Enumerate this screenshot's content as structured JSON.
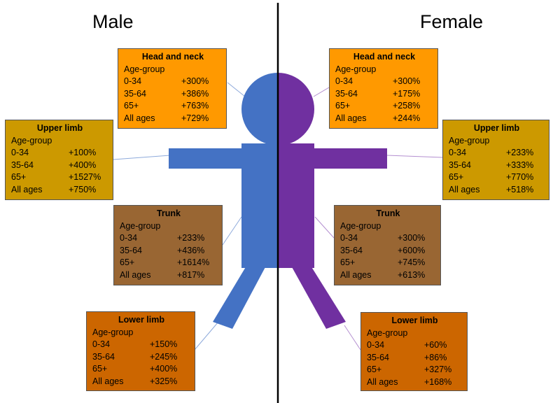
{
  "titles": {
    "male": "Male",
    "female": "Female"
  },
  "colors": {
    "male_figure": "#4472c4",
    "female_figure": "#7030a0",
    "head_neck_box": "#ff9900",
    "upper_limb_box": "#cc9900",
    "trunk_box": "#996633",
    "lower_limb_box": "#cc6600",
    "divider": "#000000",
    "connector": "#8eaadb"
  },
  "male": {
    "head_neck": {
      "title": "Head and neck",
      "subtitle": "Age-group",
      "rows": [
        {
          "age": "0-34",
          "value": "+300%"
        },
        {
          "age": "35-64",
          "value": "+386%"
        },
        {
          "age": "65+",
          "value": "+763%"
        },
        {
          "age": "All ages",
          "value": "+729%"
        }
      ]
    },
    "upper_limb": {
      "title": "Upper limb",
      "subtitle": "Age-group",
      "rows": [
        {
          "age": "0-34",
          "value": "+100%"
        },
        {
          "age": "35-64",
          "value": "+400%"
        },
        {
          "age": "65+",
          "value": "+1527%"
        },
        {
          "age": "All ages",
          "value": "+750%"
        }
      ]
    },
    "trunk": {
      "title": "Trunk",
      "subtitle": "Age-group",
      "rows": [
        {
          "age": "0-34",
          "value": "+233%"
        },
        {
          "age": "35-64",
          "value": "+436%"
        },
        {
          "age": "65+",
          "value": "+1614%"
        },
        {
          "age": "All ages",
          "value": "+817%"
        }
      ]
    },
    "lower_limb": {
      "title": "Lower limb",
      "subtitle": "Age-group",
      "rows": [
        {
          "age": "0-34",
          "value": "+150%"
        },
        {
          "age": "35-64",
          "value": "+245%"
        },
        {
          "age": "65+",
          "value": "+400%"
        },
        {
          "age": "All ages",
          "value": "+325%"
        }
      ]
    }
  },
  "female": {
    "head_neck": {
      "title": "Head and neck",
      "subtitle": "Age-group",
      "rows": [
        {
          "age": "0-34",
          "value": "+300%"
        },
        {
          "age": "35-64",
          "value": "+175%"
        },
        {
          "age": "65+",
          "value": "+258%"
        },
        {
          "age": "All ages",
          "value": "+244%"
        }
      ]
    },
    "upper_limb": {
      "title": "Upper limb",
      "subtitle": "Age-group",
      "rows": [
        {
          "age": "0-34",
          "value": "+233%"
        },
        {
          "age": "35-64",
          "value": "+333%"
        },
        {
          "age": "65+",
          "value": "+770%"
        },
        {
          "age": "All ages",
          "value": "+518%"
        }
      ]
    },
    "trunk": {
      "title": "Trunk",
      "subtitle": "Age-group",
      "rows": [
        {
          "age": "0-34",
          "value": "+300%"
        },
        {
          "age": "35-64",
          "value": "+600%"
        },
        {
          "age": "65+",
          "value": "+745%"
        },
        {
          "age": "All ages",
          "value": "+613%"
        }
      ]
    },
    "lower_limb": {
      "title": "Lower limb",
      "subtitle": "Age-group",
      "rows": [
        {
          "age": "0-34",
          "value": "+60%"
        },
        {
          "age": "35-64",
          "value": "+86%"
        },
        {
          "age": "65+",
          "value": "+327%"
        },
        {
          "age": "All ages",
          "value": "+168%"
        }
      ]
    }
  }
}
